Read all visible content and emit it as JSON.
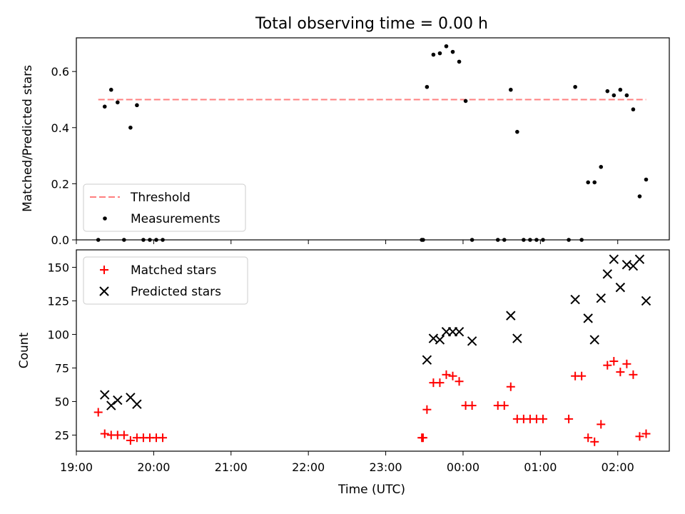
{
  "chart_data": [
    {
      "type": "line",
      "title": "Total observing time = 0.00 h",
      "ylabel": "Matched/Predicted stars",
      "xlabel": "",
      "xlim": [
        "19:00",
        "02:40"
      ],
      "ylim": [
        0,
        0.72
      ],
      "yticks": [
        0.0,
        0.2,
        0.4,
        0.6
      ],
      "ytick_labels": [
        "0.0",
        "0.2",
        "0.4",
        "0.6"
      ],
      "legend_position": "lower-left",
      "grid": false,
      "series": [
        {
          "name": "Threshold",
          "kind": "line",
          "style": "dashed",
          "color": "#ff7f7f",
          "x": [
            "19:17",
            "02:22"
          ],
          "y": [
            0.5,
            0.5
          ]
        },
        {
          "name": "Measurements",
          "kind": "scatter",
          "color": "#000000",
          "x": [
            "19:17",
            "19:22",
            "19:27",
            "19:32",
            "19:37",
            "19:42",
            "19:47",
            "19:52",
            "19:57",
            "20:02",
            "20:07",
            "23:28",
            "23:29",
            "23:32",
            "23:37",
            "23:42",
            "23:47",
            "23:52",
            "23:57",
            "00:02",
            "00:07",
            "00:27",
            "00:32",
            "00:37",
            "00:42",
            "00:47",
            "00:52",
            "00:57",
            "01:02",
            "01:22",
            "01:27",
            "01:32",
            "01:37",
            "01:42",
            "01:47",
            "01:52",
            "01:57",
            "02:02",
            "02:07",
            "02:12",
            "02:17",
            "02:22"
          ],
          "y": [
            0.0,
            0.475,
            0.535,
            0.49,
            0.0,
            0.4,
            0.48,
            0.0,
            0.0,
            0.0,
            0.0,
            0.0,
            0.0,
            0.545,
            0.66,
            0.665,
            0.69,
            0.67,
            0.635,
            0.495,
            0.0,
            0.0,
            0.0,
            0.535,
            0.385,
            0.0,
            0.0,
            0.0,
            0.0,
            0.0,
            0.545,
            0.0,
            0.205,
            0.205,
            0.26,
            0.53,
            0.515,
            0.535,
            0.515,
            0.465,
            0.155,
            0.215
          ]
        }
      ]
    },
    {
      "type": "scatter",
      "title": "",
      "xlabel": "Time (UTC)",
      "ylabel": "Count",
      "xlim": [
        "19:00",
        "02:40"
      ],
      "ylim": [
        13,
        163
      ],
      "yticks": [
        25,
        50,
        75,
        100,
        125,
        150
      ],
      "ytick_labels": [
        "25",
        "50",
        "75",
        "100",
        "125",
        "150"
      ],
      "xticks": [
        "19:00",
        "20:00",
        "21:00",
        "22:00",
        "23:00",
        "00:00",
        "01:00",
        "02:00"
      ],
      "xtick_labels": [
        "19:00",
        "20:00",
        "21:00",
        "22:00",
        "23:00",
        "00:00",
        "01:00",
        "02:00"
      ],
      "legend_position": "top-left",
      "grid": false,
      "series": [
        {
          "name": "Matched stars",
          "marker": "plus",
          "color": "#ff0000",
          "x": [
            "19:17",
            "19:22",
            "19:27",
            "19:32",
            "19:37",
            "19:42",
            "19:47",
            "19:52",
            "19:57",
            "20:02",
            "20:07",
            "23:28",
            "23:29",
            "23:32",
            "23:37",
            "23:42",
            "23:47",
            "23:52",
            "23:57",
            "00:02",
            "00:07",
            "00:27",
            "00:32",
            "00:37",
            "00:42",
            "00:47",
            "00:52",
            "00:57",
            "01:02",
            "01:22",
            "01:27",
            "01:32",
            "01:37",
            "01:42",
            "01:47",
            "01:52",
            "01:57",
            "02:02",
            "02:07",
            "02:12",
            "02:17",
            "02:22"
          ],
          "y": [
            42,
            26,
            25,
            25,
            25,
            21,
            23,
            23,
            23,
            23,
            23,
            23,
            23,
            44,
            64,
            64,
            70,
            69,
            65,
            47,
            47,
            47,
            47,
            61,
            37,
            37,
            37,
            37,
            37,
            37,
            69,
            69,
            23,
            20,
            33,
            77,
            80,
            72,
            78,
            70,
            24,
            26
          ]
        },
        {
          "name": "Predicted stars",
          "marker": "x",
          "color": "#000000",
          "x": [
            "19:22",
            "19:27",
            "19:32",
            "19:42",
            "19:47",
            "23:32",
            "23:37",
            "23:42",
            "23:47",
            "23:52",
            "23:57",
            "00:07",
            "00:37",
            "00:42",
            "01:27",
            "01:37",
            "01:42",
            "01:47",
            "01:52",
            "01:57",
            "02:02",
            "02:07",
            "02:12",
            "02:17",
            "02:22"
          ],
          "y": [
            55,
            47,
            51,
            53,
            48,
            81,
            97,
            96,
            102,
            102,
            102,
            95,
            114,
            97,
            126,
            112,
            96,
            127,
            145,
            156,
            135,
            152,
            151,
            156,
            125
          ]
        }
      ]
    }
  ]
}
